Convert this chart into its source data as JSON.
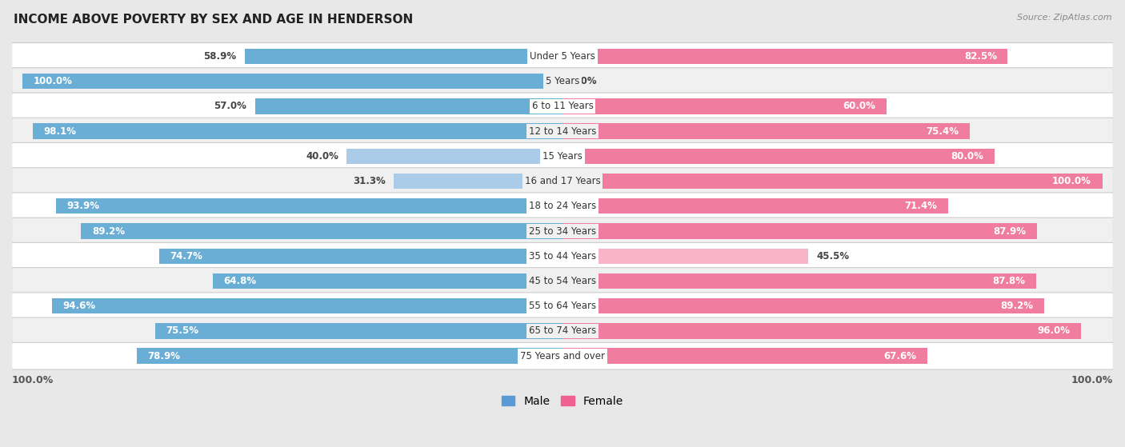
{
  "title": "INCOME ABOVE POVERTY BY SEX AND AGE IN HENDERSON",
  "source": "Source: ZipAtlas.com",
  "categories": [
    "Under 5 Years",
    "5 Years",
    "6 to 11 Years",
    "12 to 14 Years",
    "15 Years",
    "16 and 17 Years",
    "18 to 24 Years",
    "25 to 34 Years",
    "35 to 44 Years",
    "45 to 54 Years",
    "55 to 64 Years",
    "65 to 74 Years",
    "75 Years and over"
  ],
  "male": [
    58.9,
    100.0,
    57.0,
    98.1,
    40.0,
    31.3,
    93.9,
    89.2,
    74.7,
    64.8,
    94.6,
    75.5,
    78.9
  ],
  "female": [
    82.5,
    0.0,
    60.0,
    75.4,
    80.0,
    100.0,
    71.4,
    87.9,
    45.5,
    87.8,
    89.2,
    96.0,
    67.6
  ],
  "male_color": "#6aaed6",
  "female_color": "#f07ca0",
  "male_color_light": "#aacce8",
  "female_color_light": "#f8b4c8",
  "male_label": "Male",
  "female_label": "Female",
  "bg_color": "#e8e8e8",
  "row_bg_even": "#f0f0f0",
  "row_bg_odd": "#ffffff",
  "bar_height": 0.62,
  "max_value": 100.0,
  "legend_male_color": "#5b9bd5",
  "legend_female_color": "#f06090",
  "axis_label_left": "100.0%",
  "axis_label_right": "100.0%"
}
